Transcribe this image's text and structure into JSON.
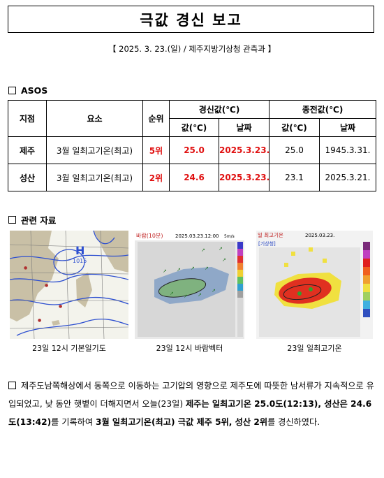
{
  "title": "극값 경신 보고",
  "subtitle": "【 2025. 3. 23.(일) / 제주지방기상청 관측과 】",
  "section_asos": "ASOS",
  "table": {
    "headers": {
      "station": "지점",
      "element": "요소",
      "rank": "순위",
      "renew": "경신값(℃)",
      "prev": "종전값(℃)",
      "value": "값(℃)",
      "date": "날짜"
    },
    "rows": [
      {
        "station": "제주",
        "element": "3월 일최고기온(최고)",
        "rank": "5위",
        "new_value": "25.0",
        "new_date": "2025.3.23.",
        "old_value": "25.0",
        "old_date": "1945.3.31."
      },
      {
        "station": "성산",
        "element": "3월 일최고기온(최고)",
        "rank": "2위",
        "new_value": "24.6",
        "new_date": "2025.3.23.",
        "old_value": "23.1",
        "old_date": "2025.3.21."
      }
    ]
  },
  "section_related": "관련 자료",
  "figures": {
    "map1_caption": "23일 12시 기본일기도",
    "map2_caption": "23일 12시 바람벡터",
    "map2_title": "바람(10분)",
    "map2_time": "2025.03.23.12:00",
    "map2_unit": "5m/s",
    "map3_caption": "23일 일최고기온",
    "map3_title": "일 최고기온",
    "map3_date": "2025.03.23.",
    "map3_tag": "[기상청]",
    "map1_label": "H",
    "map1_pressure": "1015"
  },
  "paragraph": {
    "text1": "제주도남쪽해상에서 동쪽으로 이동하는 고기압의 영향으로 제주도에 따뜻한 남서류가 지속적으로 유입되었고, 낮 동안 햇볕이 더해지면서 오늘(23일) ",
    "bold1": "제주는 일최고기온 25.0도(12:13), 성산은 24.6도(13:42)",
    "text2": "를 기록하여 ",
    "bold2": "3월 일최고기온(최고) 극값 제주 5위, 성산 2위",
    "text3": "를 경신하였다."
  },
  "colors": {
    "accent_red": "#e01010"
  }
}
